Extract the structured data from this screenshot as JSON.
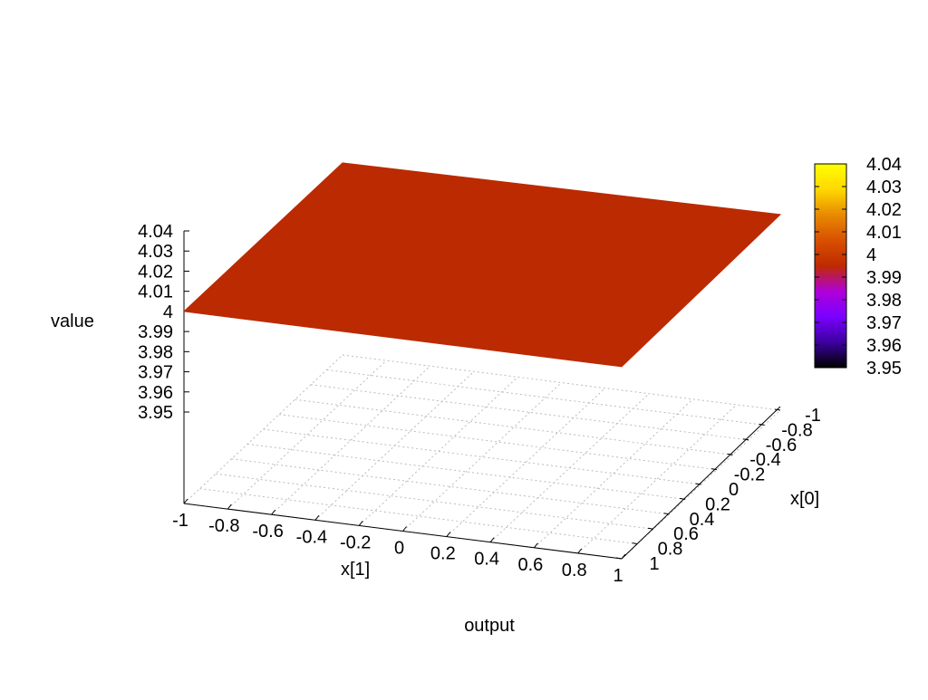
{
  "chart_data": {
    "type": "surface",
    "title": "output",
    "zlabel": "value",
    "xlabel": "x[1]",
    "ylabel": "x[0]",
    "x_range": [
      -1,
      1
    ],
    "y_range": [
      -1,
      1
    ],
    "zlim": [
      3.95,
      4.04
    ],
    "grid": true,
    "surface": {
      "description_value": 4,
      "x": [
        -1,
        1
      ],
      "y": [
        -1,
        1
      ],
      "z": [
        [
          4,
          4
        ],
        [
          4,
          4
        ]
      ]
    },
    "x_ticks": [
      "-1",
      "-0.8",
      "-0.6",
      "-0.4",
      "-0.2",
      "0",
      "0.2",
      "0.4",
      "0.6",
      "0.8",
      "1"
    ],
    "y_ticks": [
      "-1",
      "-0.8",
      "-0.6",
      "-0.4",
      "-0.2",
      "0",
      "0.2",
      "0.4",
      "0.6",
      "0.8",
      "1"
    ],
    "z_ticks": [
      "3.95",
      "3.96",
      "3.97",
      "3.98",
      "3.99",
      "4",
      "4.01",
      "4.02",
      "4.03",
      "4.04"
    ],
    "colorbar": {
      "range": [
        3.95,
        4.04
      ],
      "ticks": [
        "3.95",
        "3.96",
        "3.97",
        "3.98",
        "3.99",
        "4",
        "4.01",
        "4.02",
        "4.03",
        "4.04"
      ],
      "palette": [
        "#000000",
        "#3b00a0",
        "#7a00ff",
        "#b000d8",
        "#bf2a00",
        "#d85000",
        "#e88a00",
        "#ffd800",
        "#ffff00"
      ]
    },
    "surface_color": "#bb2a00"
  }
}
